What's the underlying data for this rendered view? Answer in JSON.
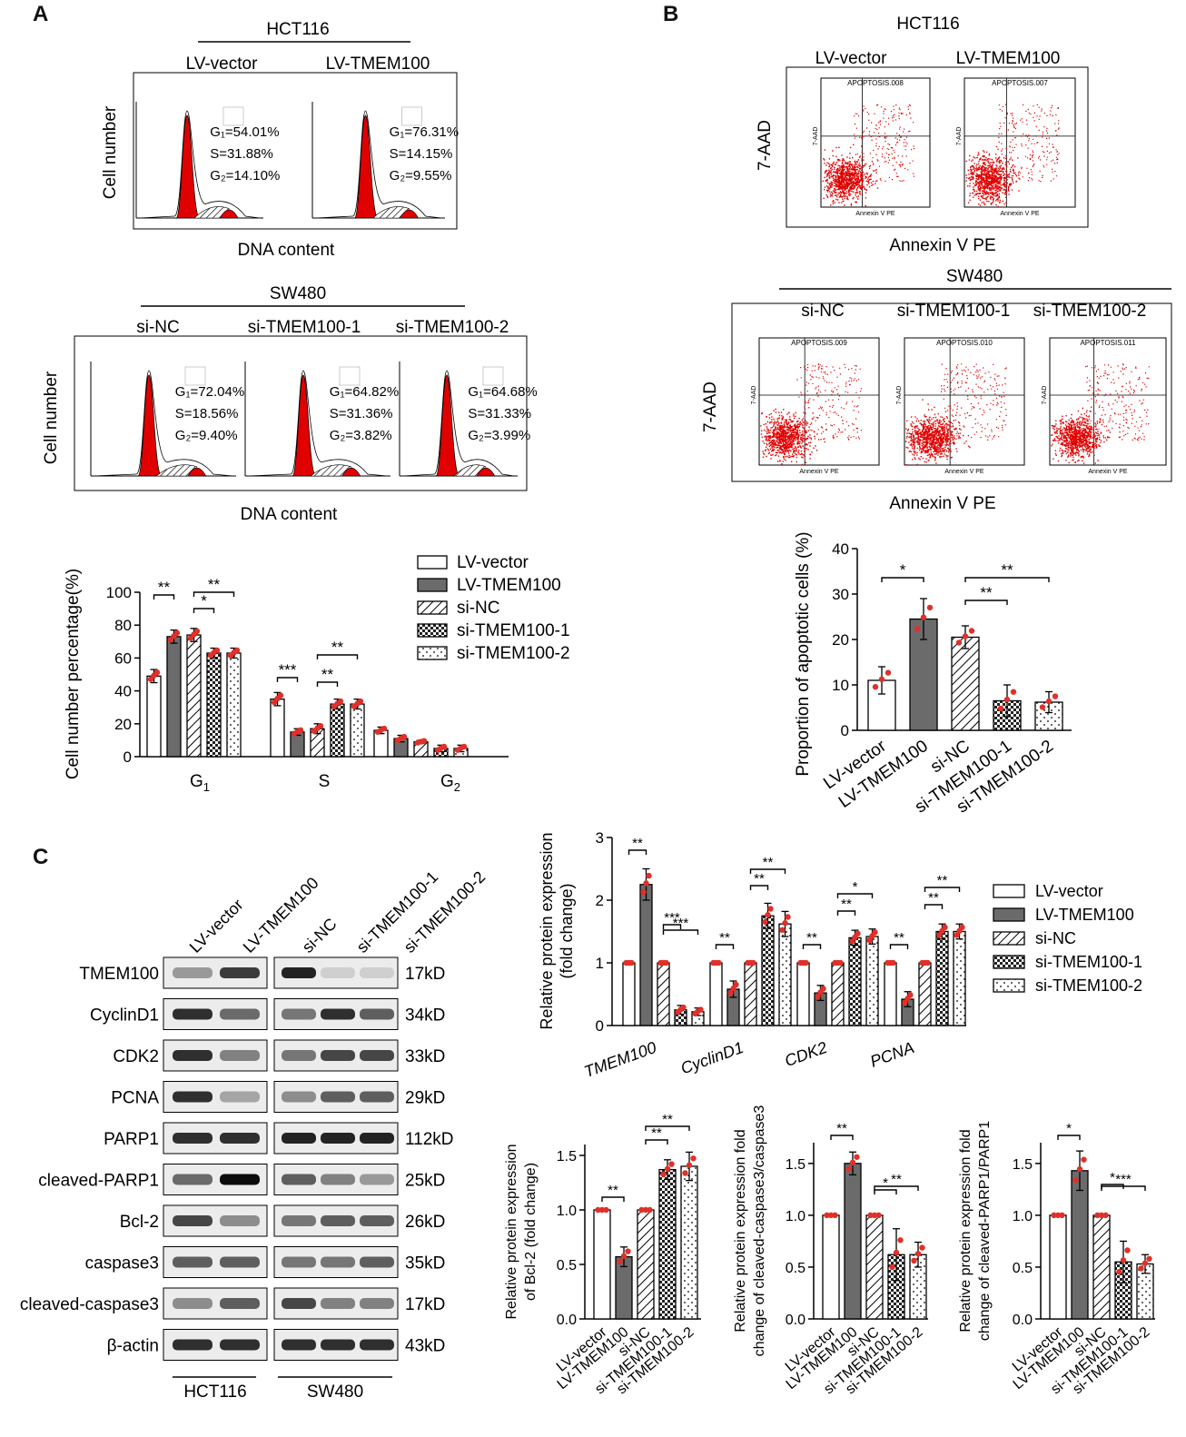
{
  "panels": {
    "a": "A",
    "b": "B",
    "c": "C"
  },
  "colors": {
    "red": "#e00000",
    "dark_bar": "#6b6b6b",
    "dot": "#e0302a"
  },
  "cell_cycle": {
    "hct116": {
      "title": "HCT116",
      "groups": [
        {
          "name": "LV-vector",
          "g1": "G₁=54.01%",
          "s": "S=31.88%",
          "g2": "G₂=14.10%"
        },
        {
          "name": "LV-TMEM100",
          "g1": "G₁=76.31%",
          "s": "S=14.15%",
          "g2": "G₂=9.55%"
        }
      ]
    },
    "sw480": {
      "title": "SW480",
      "groups": [
        {
          "name": "si-NC",
          "g1": "G₁=72.04%",
          "s": "S=18.56%",
          "g2": "G₂=9.40%"
        },
        {
          "name": "si-TMEM100-1",
          "g1": "G₁=64.82%",
          "s": "S=31.36%",
          "g2": "G₂=3.82%"
        },
        {
          "name": "si-TMEM100-2",
          "g1": "G₁=64.68%",
          "s": "S=31.33%",
          "g2": "G₂=3.99%"
        }
      ]
    },
    "ylabel": "Cell number",
    "xlabel": "DNA content"
  },
  "apoptosis": {
    "hct116": {
      "title": "HCT116",
      "groups": [
        {
          "name": "LV-vector",
          "file": "APOPTOSIS.008"
        },
        {
          "name": "LV-TMEM100",
          "file": "APOPTOSIS.007"
        }
      ]
    },
    "sw480": {
      "title": "SW480",
      "groups": [
        {
          "name": "si-NC",
          "file": "APOPTOSIS.009"
        },
        {
          "name": "si-TMEM100-1",
          "file": "APOPTOSIS.010"
        },
        {
          "name": "si-TMEM100-2",
          "file": "APOPTOSIS.011"
        }
      ]
    },
    "ylabel": "7-AAD",
    "xlabel": "Annexin V PE",
    "mini_x": "Annexin V PE",
    "mini_y": "7-AAD"
  },
  "legend": [
    "LV-vector",
    "LV-TMEM100",
    "si-NC",
    "si-TMEM100-1",
    "si-TMEM100-2"
  ],
  "western": {
    "group_labels": [
      "LV-vector",
      "LV-TMEM100",
      "si-NC",
      "si-TMEM100-1",
      "si-TMEM100-2"
    ],
    "cell_lines": [
      "HCT116",
      "SW480"
    ],
    "rows": [
      {
        "protein": "TMEM100",
        "kd": "17kD"
      },
      {
        "protein": "CyclinD1",
        "kd": "34kD"
      },
      {
        "protein": "CDK2",
        "kd": "33kD"
      },
      {
        "protein": "PCNA",
        "kd": "29kD"
      },
      {
        "protein": "PARP1",
        "kd": "112kD"
      },
      {
        "protein": "cleaved-PARP1",
        "kd": "25kD"
      },
      {
        "protein": "Bcl-2",
        "kd": "26kD"
      },
      {
        "protein": "caspase3",
        "kd": "35kD"
      },
      {
        "protein": "cleaved-caspase3",
        "kd": "17kD"
      },
      {
        "protein": "β-actin",
        "kd": "43kD"
      }
    ]
  },
  "chart_data": [
    {
      "type": "bar",
      "title": "",
      "ylabel": "Cell number percentage(%)",
      "categories": [
        "G1",
        "S",
        "G2"
      ],
      "ylim": [
        0,
        100
      ],
      "yticks": [
        0,
        20,
        40,
        60,
        80,
        100
      ],
      "series": [
        {
          "name": "LV-vector",
          "values": [
            49,
            35,
            16
          ],
          "err": [
            4,
            4,
            2
          ]
        },
        {
          "name": "LV-TMEM100",
          "values": [
            73,
            15,
            11
          ],
          "err": [
            4,
            2,
            2
          ]
        },
        {
          "name": "si-NC",
          "values": [
            74,
            17,
            9
          ],
          "err": [
            4,
            3,
            1
          ]
        },
        {
          "name": "si-TMEM100-1",
          "values": [
            63,
            32,
            5
          ],
          "err": [
            3,
            3,
            2
          ]
        },
        {
          "name": "si-TMEM100-2",
          "values": [
            63,
            32,
            5
          ],
          "err": [
            3,
            3,
            2
          ]
        }
      ],
      "significance": [
        {
          "cat": 0,
          "from": 0,
          "to": 1,
          "label": "**"
        },
        {
          "cat": 0,
          "from": 2,
          "to": 3,
          "label": "*"
        },
        {
          "cat": 0,
          "from": 2,
          "to": 4,
          "label": "**"
        },
        {
          "cat": 1,
          "from": 0,
          "to": 1,
          "label": "***"
        },
        {
          "cat": 1,
          "from": 2,
          "to": 3,
          "label": "**"
        },
        {
          "cat": 1,
          "from": 2,
          "to": 4,
          "label": "**"
        }
      ]
    },
    {
      "type": "bar",
      "title": "",
      "ylabel": "Proportion of apoptotic cells (%)",
      "categories": [
        "LV-vector",
        "LV-TMEM100",
        "si-NC",
        "si-TMEM100-1",
        "si-TMEM100-2"
      ],
      "ylim": [
        0,
        40
      ],
      "yticks": [
        0,
        10,
        20,
        30,
        40
      ],
      "values": [
        11,
        24.5,
        20.5,
        6.5,
        6.2
      ],
      "err": [
        3,
        4.5,
        2.5,
        3.5,
        2.3
      ],
      "significance": [
        {
          "from": 0,
          "to": 1,
          "label": "*"
        },
        {
          "from": 2,
          "to": 3,
          "label": "**"
        },
        {
          "from": 2,
          "to": 4,
          "label": "**"
        }
      ]
    },
    {
      "type": "bar",
      "title": "",
      "ylabel": "Relative protein expression (fold change)",
      "categories": [
        "TMEM100",
        "CyclinD1",
        "CDK2",
        "PCNA"
      ],
      "ylim": [
        0,
        3
      ],
      "yticks": [
        0,
        1,
        2,
        3
      ],
      "series": [
        {
          "name": "LV-vector",
          "values": [
            1,
            1,
            1,
            1
          ],
          "err": [
            0,
            0,
            0,
            0
          ]
        },
        {
          "name": "LV-TMEM100",
          "values": [
            2.25,
            0.58,
            0.52,
            0.42
          ],
          "err": [
            0.25,
            0.13,
            0.12,
            0.12
          ]
        },
        {
          "name": "si-NC",
          "values": [
            1,
            1,
            1,
            1
          ],
          "err": [
            0,
            0,
            0,
            0
          ]
        },
        {
          "name": "si-TMEM100-1",
          "values": [
            0.25,
            1.75,
            1.4,
            1.5
          ],
          "err": [
            0.07,
            0.2,
            0.12,
            0.12
          ]
        },
        {
          "name": "si-TMEM100-2",
          "values": [
            0.22,
            1.62,
            1.42,
            1.5
          ],
          "err": [
            0.06,
            0.2,
            0.12,
            0.12
          ]
        }
      ],
      "significance": [
        {
          "cat": 0,
          "from": 0,
          "to": 1,
          "label": "**"
        },
        {
          "cat": 0,
          "from": 2,
          "to": 3,
          "label": "***"
        },
        {
          "cat": 0,
          "from": 2,
          "to": 4,
          "label": "***"
        },
        {
          "cat": 1,
          "from": 0,
          "to": 1,
          "label": "**"
        },
        {
          "cat": 1,
          "from": 2,
          "to": 3,
          "label": "**"
        },
        {
          "cat": 1,
          "from": 2,
          "to": 4,
          "label": "**"
        },
        {
          "cat": 2,
          "from": 0,
          "to": 1,
          "label": "**"
        },
        {
          "cat": 2,
          "from": 2,
          "to": 3,
          "label": "**"
        },
        {
          "cat": 2,
          "from": 2,
          "to": 4,
          "label": "*"
        },
        {
          "cat": 3,
          "from": 0,
          "to": 1,
          "label": "**"
        },
        {
          "cat": 3,
          "from": 2,
          "to": 3,
          "label": "**"
        },
        {
          "cat": 3,
          "from": 2,
          "to": 4,
          "label": "**"
        }
      ]
    },
    {
      "type": "bar",
      "title": "",
      "ylabel": [
        "Relative protein expression",
        "of Bcl-2 (fold change)"
      ],
      "categories": [
        "LV-vector",
        "LV-TMEM100",
        "si-NC",
        "si-TMEM100-1",
        "si-TMEM100-2"
      ],
      "ylim": [
        0,
        1.6
      ],
      "yticks": [
        0.0,
        0.5,
        1.0,
        1.5
      ],
      "values": [
        1.0,
        0.57,
        1.0,
        1.37,
        1.4
      ],
      "err": [
        0,
        0.09,
        0,
        0.09,
        0.13
      ],
      "significance": [
        {
          "from": 0,
          "to": 1,
          "label": "**"
        },
        {
          "from": 2,
          "to": 3,
          "label": "**"
        },
        {
          "from": 2,
          "to": 4,
          "label": "**"
        }
      ]
    },
    {
      "type": "bar",
      "title": "",
      "ylabel": [
        "Relative protein expression fold",
        "change of cleaved-caspase3/caspase3"
      ],
      "categories": [
        "LV-vector",
        "LV-TMEM100",
        "si-NC",
        "si-TMEM100-1",
        "si-TMEM100-2"
      ],
      "ylim": [
        0,
        1.7
      ],
      "yticks": [
        0.0,
        0.5,
        1.0,
        1.5
      ],
      "values": [
        1.0,
        1.5,
        1.0,
        0.62,
        0.62
      ],
      "err": [
        0,
        0.11,
        0,
        0.25,
        0.12
      ],
      "significance": [
        {
          "from": 0,
          "to": 1,
          "label": "**"
        },
        {
          "from": 2,
          "to": 3,
          "label": "*"
        },
        {
          "from": 2,
          "to": 4,
          "label": "**"
        }
      ]
    },
    {
      "type": "bar",
      "title": "",
      "ylabel": [
        "Relative protein expression fold",
        "change of cleaved-PARP1/PARP1"
      ],
      "categories": [
        "LV-vector",
        "LV-TMEM100",
        "si-NC",
        "si-TMEM100-1",
        "si-TMEM100-2"
      ],
      "ylim": [
        0,
        1.7
      ],
      "yticks": [
        0.0,
        0.5,
        1.0,
        1.5
      ],
      "values": [
        1.0,
        1.43,
        1.0,
        0.55,
        0.53
      ],
      "err": [
        0,
        0.19,
        0,
        0.2,
        0.09
      ],
      "significance": [
        {
          "from": 0,
          "to": 1,
          "label": "*"
        },
        {
          "from": 2,
          "to": 3,
          "label": "*"
        },
        {
          "from": 2,
          "to": 4,
          "label": "***"
        }
      ]
    }
  ]
}
